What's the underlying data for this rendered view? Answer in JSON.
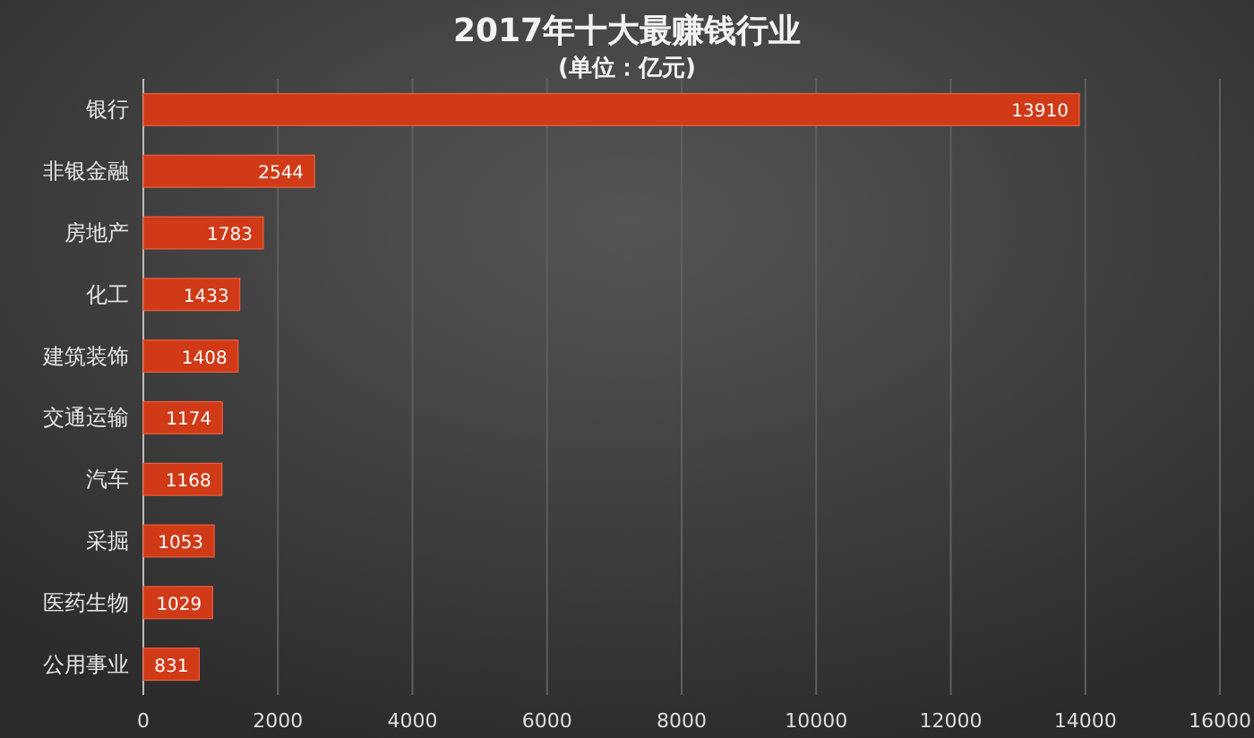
{
  "chart_data": {
    "type": "bar",
    "orientation": "horizontal",
    "title": "2017年十大最赚钱行业",
    "subtitle": "(单位：亿元)",
    "categories": [
      "银行",
      "非银金融",
      "房地产",
      "化工",
      "建筑装饰",
      "交通运输",
      "汽车",
      "采掘",
      "医药生物",
      "公用事业"
    ],
    "values": [
      13910,
      2544,
      1783,
      1433,
      1408,
      1174,
      1168,
      1053,
      1029,
      831
    ],
    "color": "#d03a17",
    "xlim": [
      0,
      16000
    ],
    "xticks": [
      0,
      2000,
      4000,
      6000,
      8000,
      10000,
      12000,
      14000,
      16000
    ],
    "grid": "x",
    "data_labels": true
  }
}
